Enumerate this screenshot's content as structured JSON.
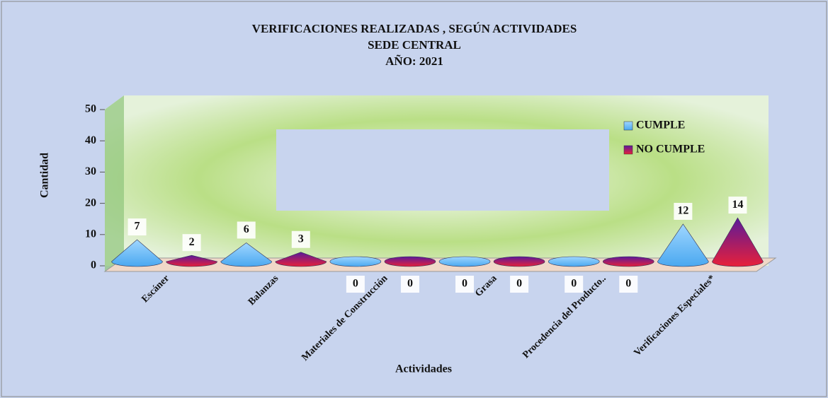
{
  "chart_data": {
    "type": "cone",
    "title": "VERIFICACIONES REALIZADAS , SEGÚN ACTIVIDADES",
    "subtitle": "SEDE CENTRAL",
    "period": "AÑO: 2021",
    "y_label": "Cantidad",
    "x_label": "Actividades",
    "categories": [
      "Escáner",
      "Balanzas",
      "Materiales de Construcción",
      "Grasa",
      "Procedencia del Producto..",
      "Verificaciones Especiales*"
    ],
    "series": [
      {
        "name": "CUMPLE",
        "color": "#4aa8f0",
        "values": [
          7,
          6,
          0,
          0,
          0,
          12
        ]
      },
      {
        "name": "NO CUMPLE",
        "color": "#e8203a",
        "values": [
          2,
          3,
          0,
          0,
          0,
          14
        ]
      }
    ],
    "ylim": [
      0,
      50
    ],
    "yticks": [
      0,
      10,
      20,
      30,
      40,
      50
    ]
  }
}
